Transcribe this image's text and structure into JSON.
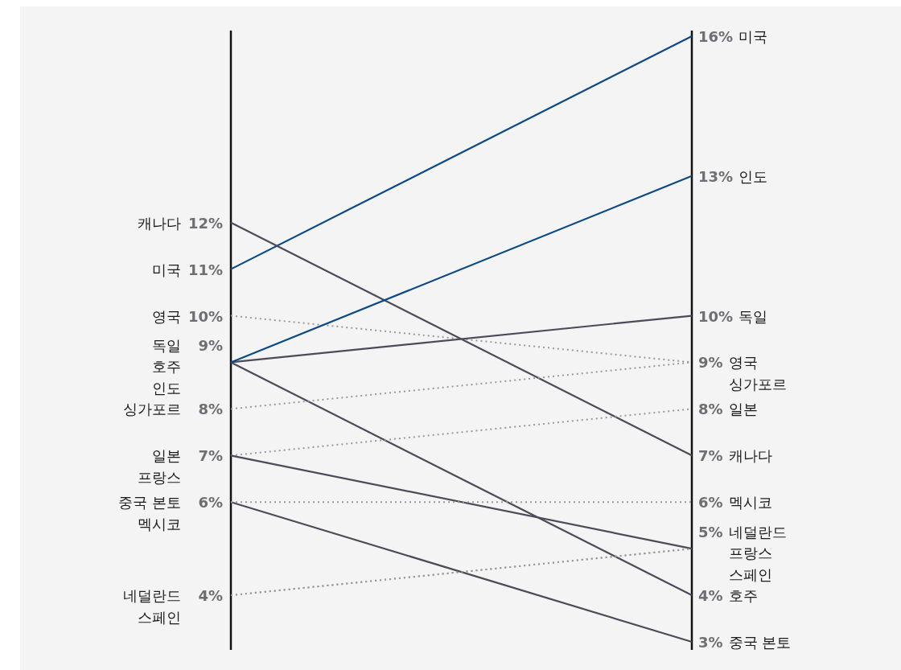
{
  "chart_data": {
    "type": "line",
    "categories": [
      null,
      null
    ],
    "series": [
      {
        "name": "미국",
        "color": "#0b4a85",
        "line_style": "solid",
        "values": [
          11,
          16
        ],
        "value_labels": [
          "11%",
          "16%"
        ]
      },
      {
        "name": "캐나다",
        "color": "#4d4b57",
        "line_style": "solid",
        "values": [
          12,
          7
        ],
        "value_labels": [
          "12%",
          "7%"
        ]
      },
      {
        "name": "영국",
        "color": "#9a9a9a",
        "line_style": "dotted",
        "values": [
          10,
          9
        ],
        "value_labels": [
          "10%",
          "9%"
        ]
      },
      {
        "name": "독일",
        "color": "#4d4b57",
        "line_style": "solid",
        "values": [
          9,
          10
        ],
        "value_labels": [
          "9%",
          "10%"
        ]
      },
      {
        "name": "호주",
        "color": "#4d4b57",
        "line_style": "solid",
        "values": [
          9,
          4
        ],
        "value_labels": [
          null,
          "4%"
        ]
      },
      {
        "name": "인도",
        "color": "#0b4a85",
        "line_style": "solid",
        "values": [
          9,
          13
        ],
        "value_labels": [
          null,
          "13%"
        ]
      },
      {
        "name": "싱가포르",
        "color": "#9a9a9a",
        "line_style": "dotted",
        "values": [
          8,
          9
        ],
        "value_labels": [
          "8%",
          null
        ]
      },
      {
        "name": "일본",
        "color": "#9a9a9a",
        "line_style": "dotted",
        "values": [
          7,
          8
        ],
        "value_labels": [
          "7%",
          "8%"
        ]
      },
      {
        "name": "네덜란드",
        "color": "#9a9a9a",
        "line_style": "dotted",
        "values": [
          4,
          5
        ],
        "value_labels": [
          "4%",
          "5%"
        ]
      },
      {
        "name": "프랑스",
        "color": "#4d4b57",
        "line_style": "solid",
        "values": [
          7,
          5
        ],
        "value_labels": [
          null,
          null
        ]
      },
      {
        "name": "중국 본토",
        "color": "#4d4b57",
        "line_style": "solid",
        "values": [
          6,
          3
        ],
        "value_labels": [
          "6%",
          "3%"
        ]
      },
      {
        "name": "멕시코",
        "color": "#9a9a9a",
        "line_style": "dotted",
        "values": [
          6,
          6
        ],
        "value_labels": [
          null,
          "6%"
        ]
      },
      {
        "name": "스페인",
        "color": "#9a9a9a",
        "line_style": "dotted",
        "values": [
          4,
          5
        ],
        "value_labels": [
          null,
          null
        ]
      }
    ]
  }
}
